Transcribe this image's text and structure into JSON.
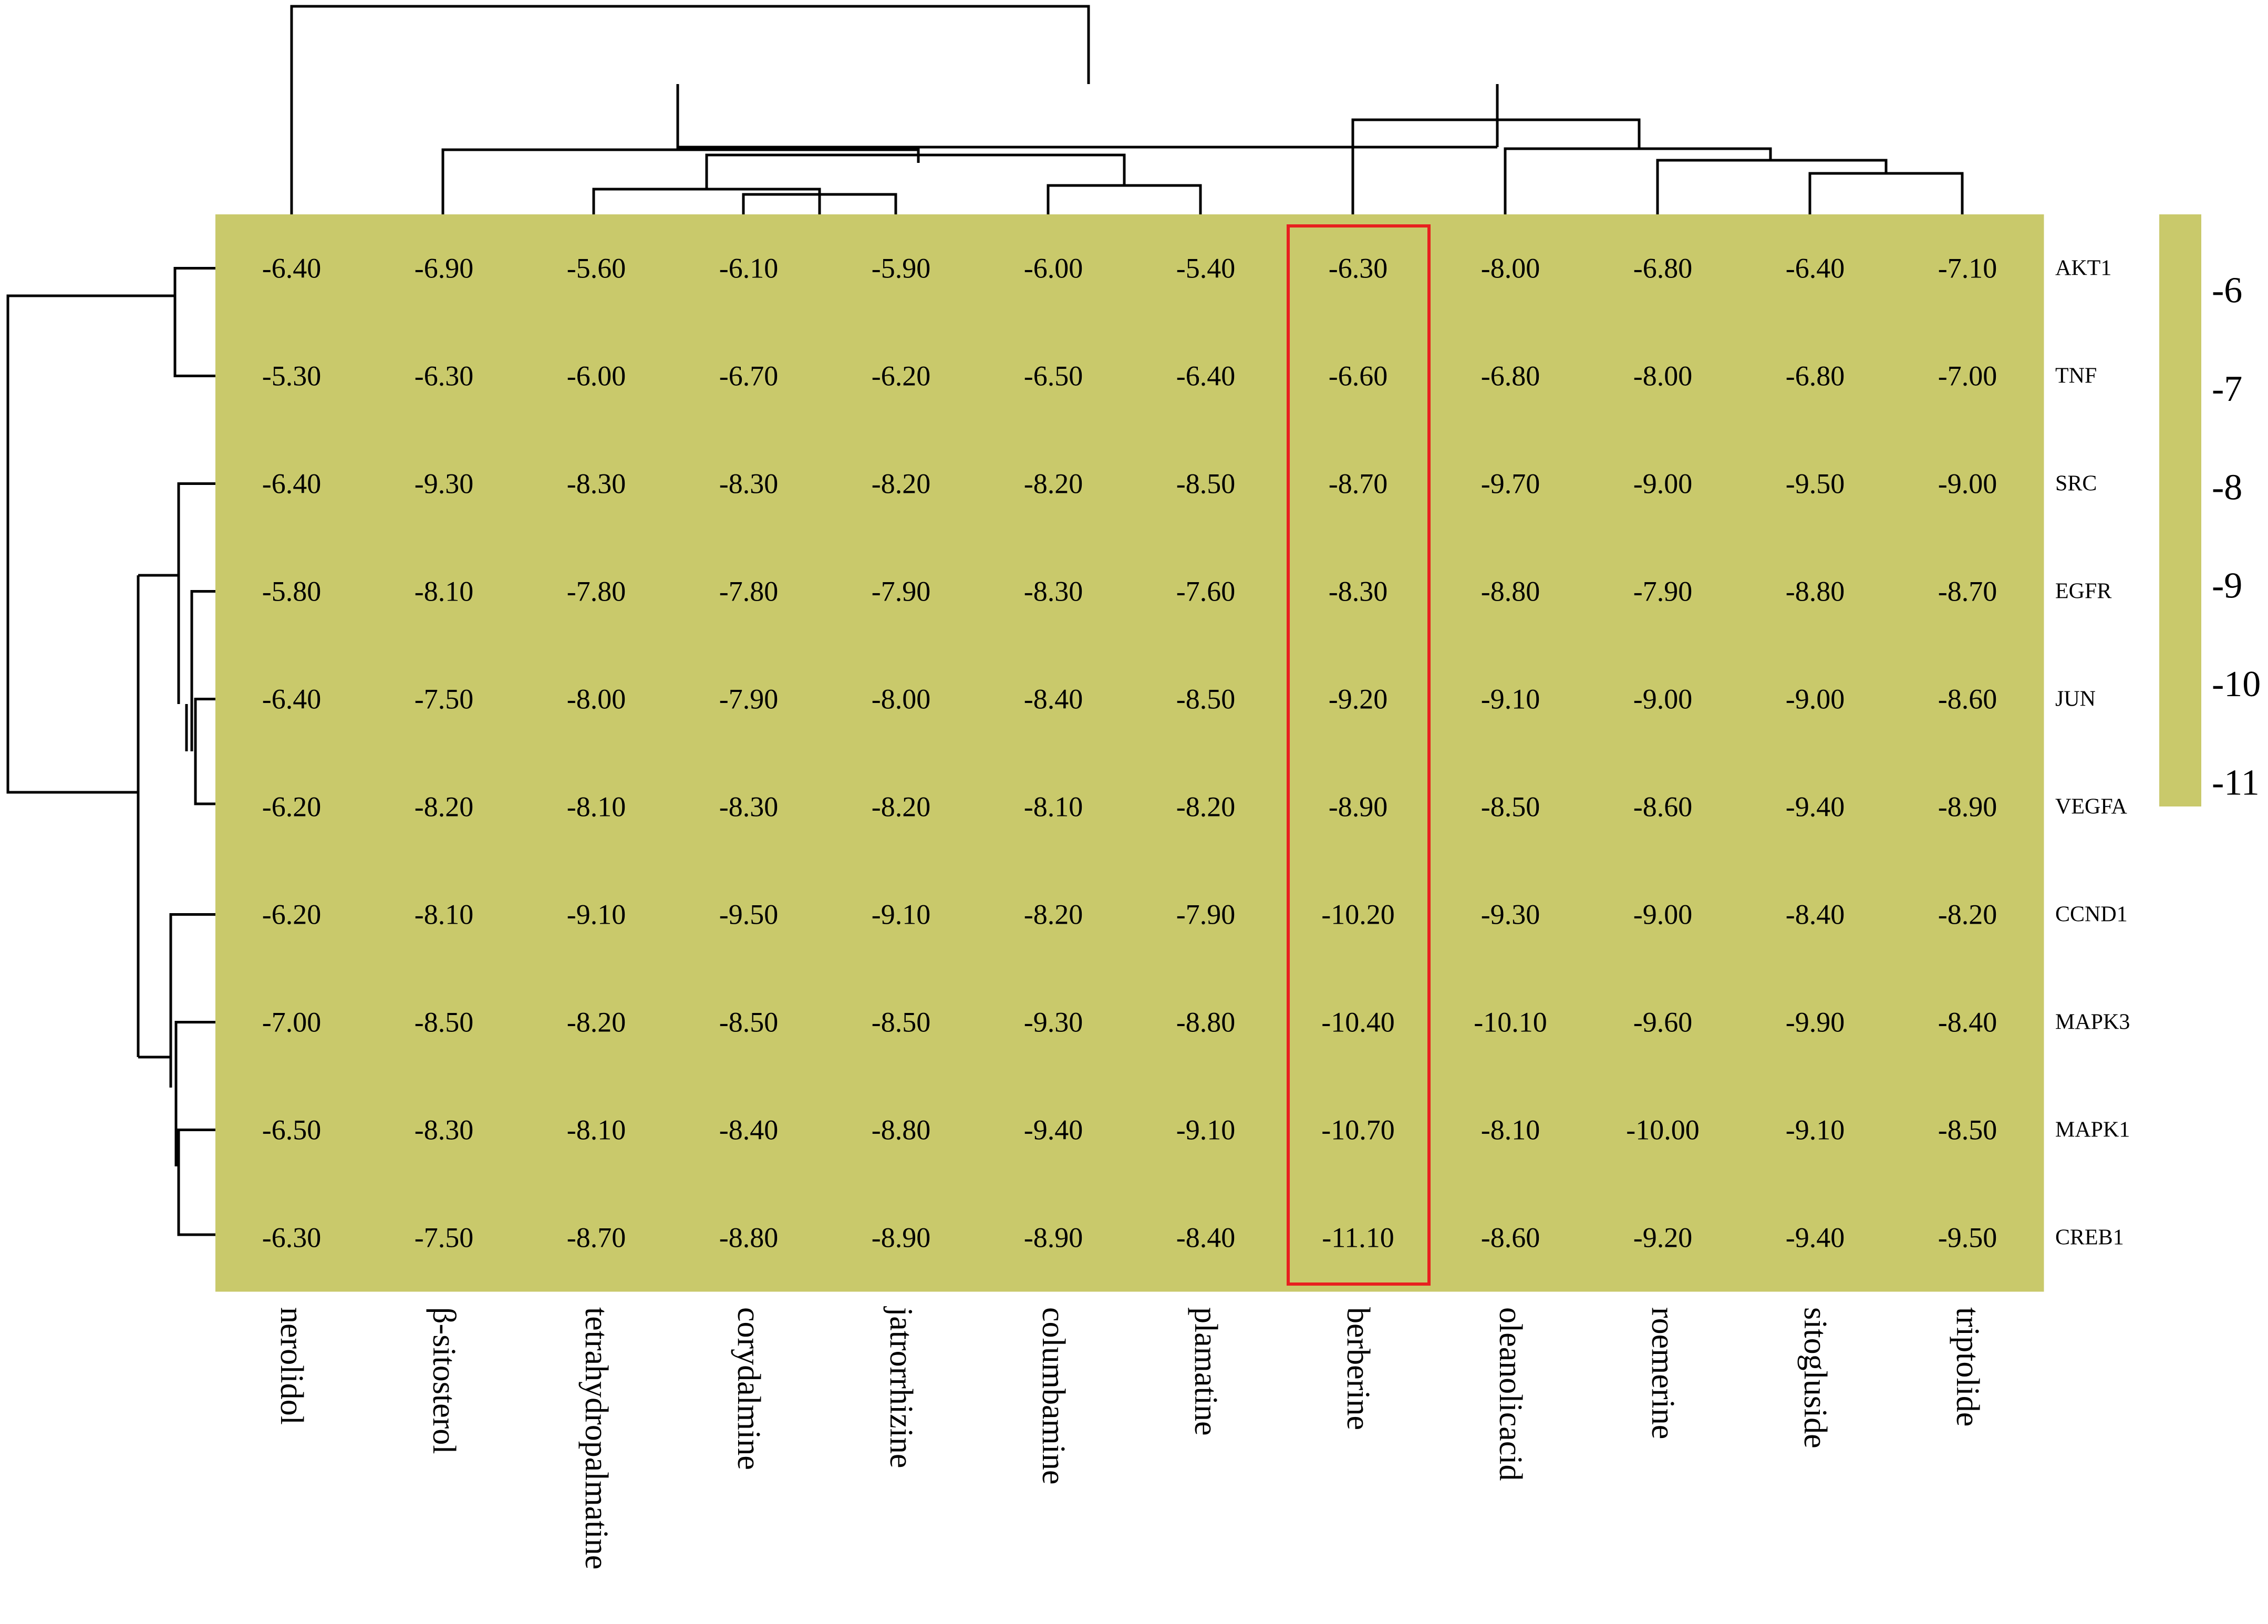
{
  "chart_data": {
    "type": "heatmap",
    "columns": [
      "nerolidol",
      "β-sitosterol",
      "tetrahydropalmatine",
      "corydalmine",
      "jatrorrhizine",
      "columbamine",
      "plamatine",
      "berberine",
      "oleanolicacid",
      "roemerine",
      "sitogluside",
      "triptolide"
    ],
    "rows": [
      "AKT1",
      "TNF",
      "SRC",
      "EGFR",
      "JUN",
      "VEGFA",
      "CCND1",
      "MAPK3",
      "MAPK1",
      "CREB1"
    ],
    "values": [
      [
        -6.4,
        -6.9,
        -5.6,
        -6.1,
        -5.9,
        -6.0,
        -5.4,
        -6.3,
        -8.0,
        -6.8,
        -6.4,
        -7.1
      ],
      [
        -5.3,
        -6.3,
        -6.0,
        -6.7,
        -6.2,
        -6.5,
        -6.4,
        -6.6,
        -6.8,
        -8.0,
        -6.8,
        -7.0
      ],
      [
        -6.4,
        -9.3,
        -8.3,
        -8.3,
        -8.2,
        -8.2,
        -8.5,
        -8.7,
        -9.7,
        -9.0,
        -9.5,
        -9.0
      ],
      [
        -5.8,
        -8.1,
        -7.8,
        -7.8,
        -7.9,
        -8.3,
        -7.6,
        -8.3,
        -8.8,
        -7.9,
        -8.8,
        -8.7
      ],
      [
        -6.4,
        -7.5,
        -8.0,
        -7.9,
        -8.0,
        -8.4,
        -8.5,
        -9.2,
        -9.1,
        -9.0,
        -9.0,
        -8.6
      ],
      [
        -6.2,
        -8.2,
        -8.1,
        -8.3,
        -8.2,
        -8.1,
        -8.2,
        -8.9,
        -8.5,
        -8.6,
        -9.4,
        -8.9
      ],
      [
        -6.2,
        -8.1,
        -9.1,
        -9.5,
        -9.1,
        -8.2,
        -7.9,
        -10.2,
        -9.3,
        -9.0,
        -8.4,
        -8.2
      ],
      [
        -7.0,
        -8.5,
        -8.2,
        -8.5,
        -8.5,
        -9.3,
        -8.8,
        -10.4,
        -10.1,
        -9.6,
        -9.9,
        -8.4
      ],
      [
        -6.5,
        -8.3,
        -8.1,
        -8.4,
        -8.8,
        -9.4,
        -9.1,
        -10.7,
        -8.1,
        -10.0,
        -9.1,
        -8.5
      ],
      [
        -6.3,
        -7.5,
        -8.7,
        -8.8,
        -8.9,
        -8.9,
        -8.4,
        -11.1,
        -8.6,
        -9.2,
        -9.4,
        -9.5
      ]
    ],
    "colorbar": {
      "ticks": [
        "-6",
        "-7",
        "-8",
        "-9",
        "-10",
        "-11"
      ],
      "range": [
        -11,
        -6
      ]
    },
    "colors": {
      "cell": "#c9c96b",
      "highlight": "#e8201f"
    },
    "highlighted_column": "berberine",
    "value_format_decimals": 2,
    "legend_position": "right"
  }
}
